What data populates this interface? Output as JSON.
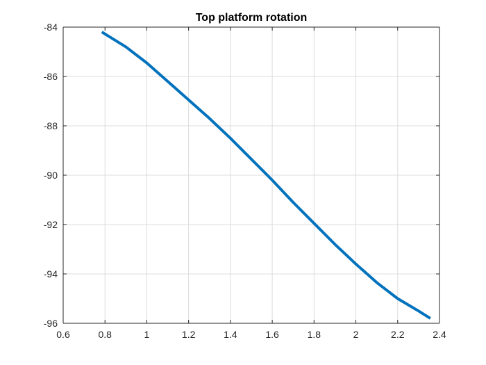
{
  "chart_data": {
    "type": "line",
    "title": "Top platform rotation",
    "xlabel": "",
    "ylabel": "",
    "xlim": [
      0.6,
      2.4
    ],
    "ylim": [
      -96,
      -84
    ],
    "xticks": [
      0.6,
      0.8,
      1,
      1.2,
      1.4,
      1.6,
      1.8,
      2,
      2.2,
      2.4
    ],
    "xtick_labels": [
      "0.6",
      "0.8",
      "1",
      "1.2",
      "1.4",
      "1.6",
      "1.8",
      "2",
      "2.2",
      "2.4"
    ],
    "yticks": [
      -96,
      -94,
      -92,
      -90,
      -88,
      -86,
      -84
    ],
    "ytick_labels": [
      "-96",
      "-94",
      "-92",
      "-90",
      "-88",
      "-86",
      "-84"
    ],
    "grid": true,
    "series": [
      {
        "color": "#0072BD",
        "x": [
          0.785,
          0.9,
          1.0,
          1.1,
          1.2,
          1.3,
          1.4,
          1.5,
          1.6,
          1.7,
          1.8,
          1.9,
          2.0,
          2.1,
          2.2,
          2.3,
          2.356
        ],
        "y": [
          -84.2,
          -84.8,
          -85.45,
          -86.2,
          -86.95,
          -87.7,
          -88.5,
          -89.35,
          -90.2,
          -91.1,
          -91.95,
          -92.8,
          -93.6,
          -94.35,
          -95.0,
          -95.5,
          -95.8
        ]
      }
    ]
  }
}
